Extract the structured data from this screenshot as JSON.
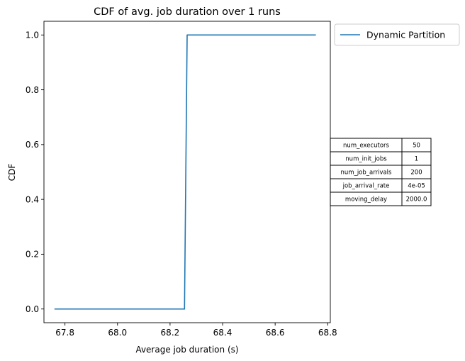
{
  "chart_data": {
    "type": "line",
    "title": "CDF of avg. job duration over 1 runs",
    "xlabel": "Average job duration (s)",
    "ylabel": "CDF",
    "xlim": [
      67.72,
      68.81
    ],
    "ylim": [
      -0.05,
      1.05
    ],
    "xticks": [
      67.8,
      68.0,
      68.2,
      68.4,
      68.6,
      68.8
    ],
    "xtick_labels": [
      "67.8",
      "68.0",
      "68.2",
      "68.4",
      "68.6",
      "68.8"
    ],
    "yticks": [
      0.0,
      0.2,
      0.4,
      0.6,
      0.8,
      1.0
    ],
    "ytick_labels": [
      "0.0",
      "0.2",
      "0.4",
      "0.6",
      "0.8",
      "1.0"
    ],
    "grid": false,
    "legend": "outside-top-right",
    "series": [
      {
        "name": "Dynamic Partition",
        "color": "#1f77b4",
        "x": [
          67.76,
          68.255,
          68.265,
          68.755
        ],
        "y": [
          0.0,
          0.0,
          1.0,
          1.0
        ]
      }
    ]
  },
  "params_table": {
    "rows": [
      {
        "name": "num_executors",
        "value": "50"
      },
      {
        "name": "num_init_jobs",
        "value": "1"
      },
      {
        "name": "num_job_arrivals",
        "value": "200"
      },
      {
        "name": "job_arrival_rate",
        "value": "4e-05"
      },
      {
        "name": "moving_delay",
        "value": "2000.0"
      }
    ]
  }
}
